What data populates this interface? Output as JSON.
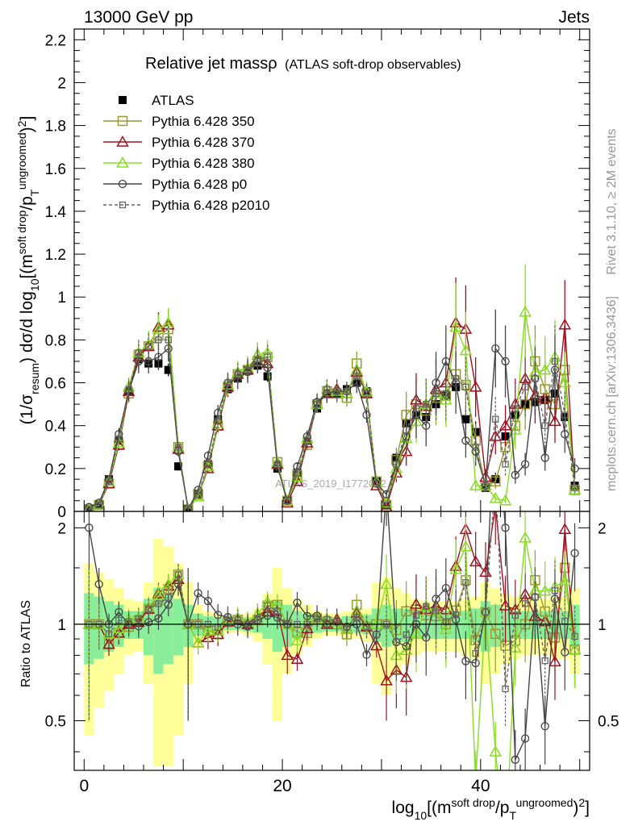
{
  "header": {
    "left": "13000 GeV pp",
    "right": "Jets",
    "title_main": "Relative jet massρ",
    "title_sub": "(ATLAS soft-drop observables)",
    "side_rivet": "Rivet 3.1.10, ≥ 2M events",
    "side_mcplots": "mcplots.cern.ch [arXiv:1306.3436]",
    "watermark": "ATLAS_2019_I1772062"
  },
  "axis_labels": {
    "y_main": "(1/σresum) dσ/d log10[(m soft drop/pT ungroomed)2]",
    "y_ratio": "Ratio to ATLAS",
    "x": "log10[(m soft drop/pT ungroomed)2]"
  },
  "legend": [
    {
      "label": "ATLAS",
      "color": "#000000",
      "marker": "filled-square",
      "dash": false
    },
    {
      "label": "Pythia 6.428 350",
      "color": "#999933",
      "marker": "open-square",
      "dash": false
    },
    {
      "label": "Pythia 6.428 370",
      "color": "#a01020",
      "marker": "open-triangle",
      "dash": false
    },
    {
      "label": "Pythia 6.428 380",
      "color": "#88dd22",
      "marker": "open-triangle",
      "dash": false
    },
    {
      "label": "Pythia 6.428 p0",
      "color": "#444444",
      "marker": "open-circle",
      "dash": false
    },
    {
      "label": "Pythia 6.428 p2010",
      "color": "#666666",
      "marker": "open-square-small",
      "dash": true
    }
  ],
  "chart_data": {
    "type": "line",
    "xlim": [
      -1,
      51
    ],
    "ylim_main": [
      0,
      2.25
    ],
    "ylim_ratio": [
      0.35,
      2.25
    ],
    "x_ticks": [
      0,
      20,
      40
    ],
    "y_ticks_main": [
      0,
      0.2,
      0.4,
      0.6,
      0.8,
      1,
      1.2,
      1.4,
      1.6,
      1.8,
      2,
      2.2
    ],
    "y_tick_labels_main": [
      "0",
      "0.2",
      "0.4",
      "0.6",
      "0.8",
      "1",
      "1.2",
      "1.4",
      "1.6",
      "1.8",
      "2",
      "2.2"
    ],
    "y_ticks_ratio": [
      0.5,
      1,
      2
    ],
    "y_tick_labels_ratio": [
      "0.5",
      "1",
      "2"
    ],
    "x": [
      0.5,
      1.5,
      2.5,
      3.5,
      4.5,
      5.5,
      6.5,
      7.5,
      8.5,
      9.5,
      10.5,
      11.5,
      12.5,
      13.5,
      14.5,
      15.5,
      16.5,
      17.5,
      18.5,
      19.5,
      20.5,
      21.5,
      22.5,
      23.5,
      24.5,
      25.5,
      26.5,
      27.5,
      28.5,
      29.5,
      30.5,
      31.5,
      32.5,
      33.5,
      34.5,
      35.5,
      36.5,
      37.5,
      38.5,
      39.5,
      40.5,
      41.5,
      42.5,
      43.5,
      44.5,
      45.5,
      46.5,
      47.5,
      48.5,
      49.5
    ],
    "series": [
      {
        "name": "ATLAS",
        "values": [
          0.01,
          0.03,
          0.15,
          0.33,
          0.56,
          0.71,
          0.69,
          0.69,
          0.66,
          0.21,
          0.01,
          0.08,
          0.22,
          0.43,
          0.57,
          0.62,
          0.66,
          0.68,
          0.63,
          0.2,
          0.05,
          0.18,
          0.33,
          0.48,
          0.55,
          0.55,
          0.57,
          0.6,
          0.56,
          0.14,
          0.03,
          0.25,
          0.41,
          0.45,
          0.44,
          0.5,
          0.54,
          0.58,
          0.43,
          0.37,
          0.11,
          0.15,
          0.35,
          0.45,
          0.5,
          0.51,
          0.52,
          0.55,
          0.44,
          0.12
        ]
      },
      {
        "name": "Pythia 6.428 350",
        "values": [
          0.01,
          0.03,
          0.13,
          0.31,
          0.55,
          0.73,
          0.77,
          0.82,
          0.85,
          0.3,
          0.01,
          0.08,
          0.21,
          0.4,
          0.58,
          0.64,
          0.66,
          0.7,
          0.72,
          0.23,
          0.05,
          0.17,
          0.31,
          0.5,
          0.56,
          0.55,
          0.53,
          0.69,
          0.55,
          0.14,
          0.03,
          0.24,
          0.45,
          0.5,
          0.47,
          0.53,
          0.54,
          0.64,
          0.59,
          0.33,
          0.12,
          0.14,
          0.3,
          0.4,
          0.5,
          0.7,
          0.57,
          0.5,
          0.66,
          0.1
        ]
      },
      {
        "name": "Pythia 6.428 370",
        "values": [
          0.01,
          0.03,
          0.13,
          0.31,
          0.56,
          0.72,
          0.77,
          0.86,
          0.87,
          0.29,
          0.01,
          0.07,
          0.2,
          0.4,
          0.58,
          0.64,
          0.66,
          0.73,
          0.69,
          0.22,
          0.04,
          0.14,
          0.32,
          0.5,
          0.55,
          0.57,
          0.55,
          0.65,
          0.55,
          0.12,
          0.02,
          0.18,
          0.28,
          0.52,
          0.49,
          0.57,
          0.6,
          0.88,
          0.85,
          0.58,
          0.16,
          0.35,
          0.4,
          0.5,
          0.62,
          0.54,
          0.53,
          0.42,
          0.87,
          0.1
        ]
      },
      {
        "name": "Pythia 6.428 380",
        "values": [
          0.01,
          0.03,
          0.14,
          0.32,
          0.58,
          0.74,
          0.78,
          0.85,
          0.88,
          0.3,
          0.01,
          0.07,
          0.21,
          0.41,
          0.59,
          0.65,
          0.67,
          0.73,
          0.74,
          0.23,
          0.05,
          0.16,
          0.34,
          0.5,
          0.57,
          0.56,
          0.55,
          0.66,
          0.56,
          0.14,
          0.04,
          0.2,
          0.34,
          0.42,
          0.5,
          0.55,
          0.52,
          0.86,
          0.75,
          0.12,
          0.12,
          0.06,
          0.05,
          0.38,
          0.93,
          0.65,
          0.66,
          0.72,
          0.6,
          0.1
        ]
      },
      {
        "name": "Pythia 6.428 p0",
        "values": [
          0.02,
          0.04,
          0.15,
          0.36,
          0.56,
          0.7,
          0.7,
          0.72,
          0.76,
          0.28,
          0.01,
          0.1,
          0.26,
          0.46,
          0.6,
          0.62,
          0.65,
          0.7,
          0.67,
          0.21,
          0.05,
          0.21,
          0.35,
          0.51,
          0.55,
          0.56,
          0.56,
          0.6,
          0.45,
          0.13,
          0.08,
          0.22,
          0.35,
          0.45,
          0.4,
          0.6,
          0.7,
          0.6,
          0.33,
          0.28,
          0.12,
          0.76,
          0.7,
          0.17,
          0.22,
          0.62,
          0.25,
          0.66,
          0.36,
          0.2
        ]
      },
      {
        "name": "Pythia 6.428 p2010",
        "values": [
          0.01,
          0.03,
          0.14,
          0.34,
          0.57,
          0.74,
          0.77,
          0.8,
          0.8,
          0.3,
          0.01,
          0.08,
          0.22,
          0.42,
          0.6,
          0.64,
          0.66,
          0.71,
          0.72,
          0.22,
          0.05,
          0.18,
          0.33,
          0.5,
          0.57,
          0.56,
          0.56,
          0.63,
          0.55,
          0.13,
          0.03,
          0.22,
          0.38,
          0.48,
          0.5,
          0.55,
          0.55,
          0.62,
          0.58,
          0.3,
          0.12,
          0.43,
          0.22,
          0.48,
          0.58,
          0.62,
          0.4,
          0.7,
          0.45,
          0.11
        ]
      }
    ],
    "data_uncertainty": [
      0.005,
      0.005,
      0.01,
      0.015,
      0.02,
      0.025,
      0.025,
      0.03,
      0.03,
      0.02,
      0.003,
      0.008,
      0.015,
      0.02,
      0.02,
      0.02,
      0.02,
      0.025,
      0.025,
      0.02,
      0.005,
      0.01,
      0.015,
      0.02,
      0.02,
      0.02,
      0.02,
      0.025,
      0.03,
      0.02,
      0.005,
      0.02,
      0.03,
      0.03,
      0.04,
      0.05,
      0.05,
      0.05,
      0.05,
      0.05,
      0.02,
      0.03,
      0.05,
      0.05,
      0.06,
      0.06,
      0.07,
      0.07,
      0.06,
      0.02
    ],
    "mc_uncertainty_fraction": 0.08,
    "ratio_band_total": [
      0.55,
      0.45,
      0.38,
      0.3,
      0.2,
      0.18,
      0.35,
      0.85,
      0.75,
      0.55,
      0.35,
      0.15,
      0.1,
      0.08,
      0.06,
      0.06,
      0.08,
      0.12,
      0.25,
      0.5,
      0.3,
      0.2,
      0.15,
      0.1,
      0.08,
      0.08,
      0.1,
      0.1,
      0.12,
      0.35,
      0.4,
      0.3,
      0.25,
      0.2,
      0.18,
      0.18,
      0.18,
      0.18,
      0.2,
      0.22,
      0.35,
      0.3,
      0.25,
      0.22,
      0.2,
      0.2,
      0.2,
      0.22,
      0.22,
      0.3
    ],
    "ratio_band_inner": [
      0.25,
      0.22,
      0.18,
      0.15,
      0.1,
      0.1,
      0.2,
      0.3,
      0.25,
      0.2,
      0.15,
      0.08,
      0.06,
      0.05,
      0.04,
      0.04,
      0.05,
      0.06,
      0.1,
      0.18,
      0.15,
      0.1,
      0.08,
      0.06,
      0.05,
      0.05,
      0.06,
      0.06,
      0.07,
      0.12,
      0.15,
      0.12,
      0.12,
      0.1,
      0.1,
      0.1,
      0.1,
      0.1,
      0.1,
      0.12,
      0.18,
      0.15,
      0.12,
      0.1,
      0.1,
      0.1,
      0.1,
      0.1,
      0.1,
      0.15
    ],
    "legend_position": "top-left",
    "grid": false
  }
}
